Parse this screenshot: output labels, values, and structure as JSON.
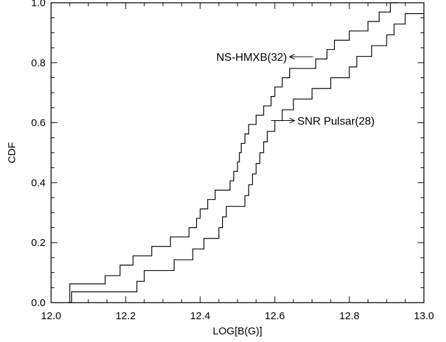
{
  "chart_data": {
    "type": "line",
    "step": true,
    "title": "",
    "xlabel": "LOG[B(G)]",
    "ylabel": "CDF",
    "xlim": [
      12.0,
      13.0
    ],
    "ylim": [
      0.0,
      1.0
    ],
    "xticks": [
      "12.0",
      "12.2",
      "12.4",
      "12.6",
      "12.8",
      "13.0"
    ],
    "yticks": [
      "0.0",
      "0.2",
      "0.4",
      "0.6",
      "0.8",
      "1.0"
    ],
    "grid": false,
    "legend": "none",
    "line_color": "#000000",
    "series": [
      {
        "name": "NS-HMXB(32)",
        "x": [
          12.045,
          12.05,
          12.145,
          12.185,
          12.22,
          12.27,
          12.32,
          12.37,
          12.39,
          12.4,
          12.42,
          12.44,
          12.48,
          12.49,
          12.5,
          12.505,
          12.51,
          12.52,
          12.53,
          12.55,
          12.57,
          12.59,
          12.6,
          12.62,
          12.64,
          12.71,
          12.74,
          12.76,
          12.8,
          12.85,
          12.88,
          12.91,
          12.93
        ],
        "y": [
          0.0,
          0.0625,
          0.09,
          0.125,
          0.156,
          0.1875,
          0.219,
          0.25,
          0.281,
          0.3125,
          0.344,
          0.375,
          0.406,
          0.4375,
          0.469,
          0.5,
          0.531,
          0.5625,
          0.594,
          0.625,
          0.656,
          0.6875,
          0.719,
          0.75,
          0.781,
          0.8125,
          0.844,
          0.875,
          0.906,
          0.9375,
          0.969,
          1.0,
          1.0
        ],
        "label": "NS-HMXB(32)"
      },
      {
        "name": "SNR Pulsar(28)",
        "x": [
          12.05,
          12.055,
          12.23,
          12.25,
          12.33,
          12.38,
          12.41,
          12.45,
          12.46,
          12.47,
          12.52,
          12.53,
          12.54,
          12.55,
          12.56,
          12.57,
          12.58,
          12.6,
          12.62,
          12.65,
          12.7,
          12.75,
          12.8,
          12.82,
          12.86,
          12.9,
          12.92,
          12.95,
          13.0
        ],
        "y": [
          0.0,
          0.036,
          0.071,
          0.107,
          0.143,
          0.179,
          0.214,
          0.25,
          0.286,
          0.321,
          0.357,
          0.393,
          0.429,
          0.464,
          0.5,
          0.536,
          0.571,
          0.607,
          0.643,
          0.679,
          0.714,
          0.75,
          0.786,
          0.821,
          0.857,
          0.893,
          0.929,
          0.964,
          0.964
        ],
        "label": "SNR Pulsar(28)"
      }
    ],
    "annotations": [
      {
        "text": "NS-HMXB(32)",
        "arrow": "left",
        "x": 12.64,
        "y": 0.82
      },
      {
        "text": "SNR Pulsar(28)",
        "arrow": "right",
        "x": 12.59,
        "y": 0.607
      }
    ]
  }
}
